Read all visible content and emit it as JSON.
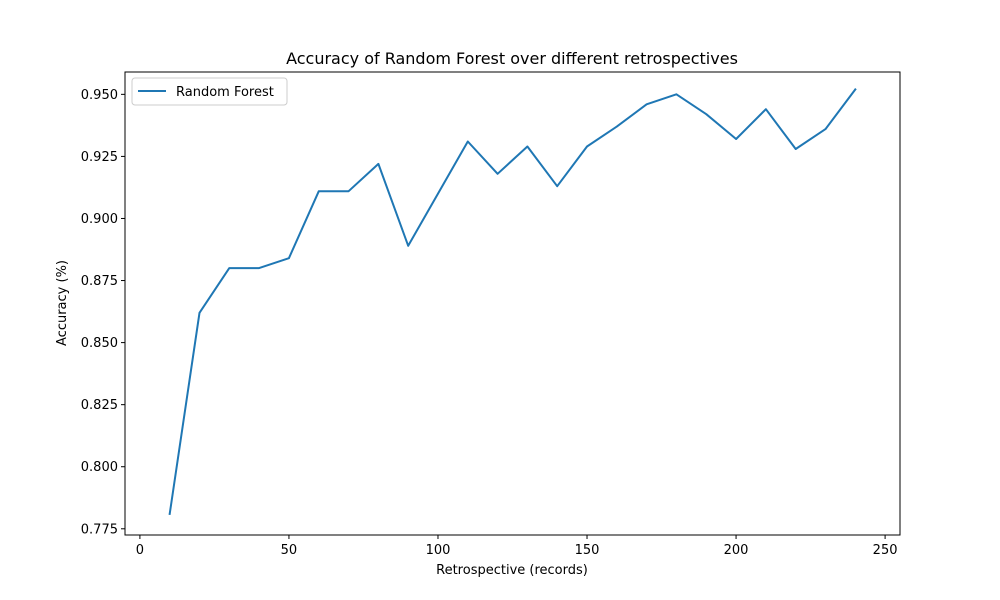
{
  "chart_data": {
    "type": "line",
    "title": "Accuracy of Random Forest over different retrospectives",
    "xlabel": "Retrospective (records)",
    "ylabel": "Accuracy (%)",
    "xlim": [
      -5,
      255
    ],
    "ylim": [
      0.7725,
      0.959
    ],
    "x_ticks": [
      0,
      50,
      100,
      150,
      200,
      250
    ],
    "y_ticks": [
      0.775,
      0.8,
      0.825,
      0.85,
      0.875,
      0.9,
      0.925,
      0.95
    ],
    "y_tick_labels": [
      "0.775",
      "0.800",
      "0.825",
      "0.850",
      "0.875",
      "0.900",
      "0.925",
      "0.950"
    ],
    "grid": false,
    "legend_position": "top-left",
    "series": [
      {
        "name": "Random Forest",
        "color": "#1f77b4",
        "x": [
          10,
          20,
          30,
          40,
          50,
          60,
          70,
          80,
          90,
          100,
          110,
          120,
          130,
          140,
          150,
          160,
          170,
          180,
          190,
          200,
          210,
          220,
          230,
          240
        ],
        "y": [
          0.781,
          0.862,
          0.88,
          0.88,
          0.884,
          0.911,
          0.911,
          0.922,
          0.889,
          0.91,
          0.931,
          0.918,
          0.929,
          0.913,
          0.929,
          0.937,
          0.946,
          0.95,
          0.942,
          0.932,
          0.944,
          0.928,
          0.936,
          0.952
        ]
      }
    ]
  }
}
